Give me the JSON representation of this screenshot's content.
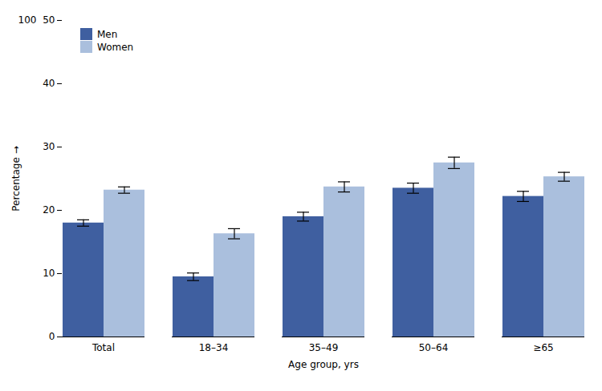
{
  "chart_data": {
    "type": "bar",
    "xlabel": "Age group, yrs",
    "ylabel": "Percentage",
    "categories": [
      "Total",
      "18–34",
      "35–49",
      "50–64",
      "≥65"
    ],
    "series": [
      {
        "name": "Men",
        "color": "#3F5FA0",
        "values": [
          18.0,
          9.5,
          19.0,
          23.5,
          22.2
        ],
        "errors": [
          0.5,
          0.6,
          0.7,
          0.8,
          0.8
        ]
      },
      {
        "name": "Women",
        "color": "#AABFDD",
        "values": [
          23.2,
          16.3,
          23.7,
          27.5,
          25.3
        ],
        "errors": [
          0.5,
          0.8,
          0.8,
          0.9,
          0.7
        ]
      }
    ],
    "ylim": [
      0,
      50
    ],
    "yticks": [
      0,
      10,
      20,
      30,
      40,
      50
    ],
    "legend": "upper left",
    "annotations": [
      {
        "text": "100",
        "y": 50
      }
    ]
  }
}
